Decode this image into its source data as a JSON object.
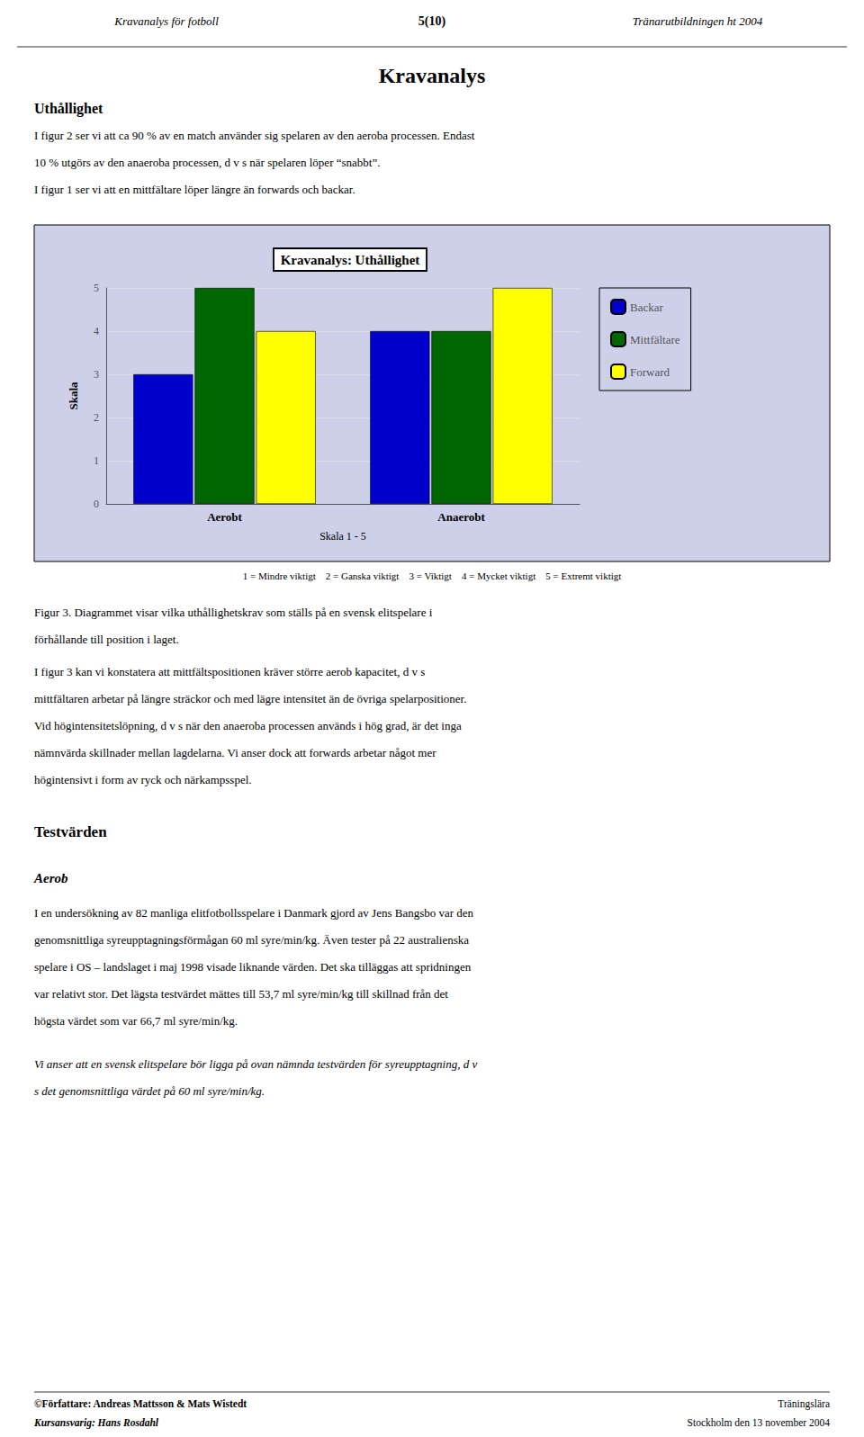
{
  "chart_data": {
    "type": "bar",
    "title": "Kravanalys: Uthållighet",
    "xlabel": "Skala 1 - 5",
    "ylabel": "Skala",
    "categories": [
      "Aerobt",
      "Anaerobt"
    ],
    "series": [
      {
        "name": "Backar",
        "color": "#0000CC",
        "values": [
          3,
          4
        ]
      },
      {
        "name": "Mittfältare",
        "color": "#006600",
        "values": [
          5,
          4
        ]
      },
      {
        "name": "Forward",
        "color": "#FFFF00",
        "values": [
          4,
          5
        ]
      }
    ],
    "ylim": [
      0,
      5
    ],
    "yticks": [
      0,
      1,
      2,
      3,
      4,
      5
    ],
    "grid": true,
    "legend": "right",
    "annotations": [
      "Kravanalys för fotboll",
      "5(10)",
      "Tränarutbildningen ht 2004",
      "Kravanalys",
      "Uthållighet",
      "I figur 2 ser vi att ca 90 % av en match använder sig spelaren av den aeroba processen. Endast",
      "10 % utgörs av den anaeroba processen, d v s när spelaren löper “snabbt”.",
      "I figur 1 ser vi att en mittfältare löper längre än forwards och backar.",
      "1 = Mindre viktigt    2 = Ganska viktigt    3 = Viktigt    4 = Mycket viktigt    5 = Extremt viktigt",
      "Figur 3. Diagrammet visar vilka uthållighetskrav som ställs på en svensk elitspelare i",
      "förhållande till position i laget.",
      "I figur 3 kan vi konstatera att mittfältspositionen kräver större aerob kapacitet, d v s",
      "mittfältaren arbetar på längre sträckor och med lägre intensitet än de övriga spelarpositioner.",
      "Vid högintensitetslöpning, d v s när den anaeroba processen används i hög grad, är det inga",
      "nämnvärda skillnader mellan lagdelarna. Vi anser dock att forwards arbetar något mer",
      "högintensivt i form av ryck och närkampsspel.",
      "Testvärden",
      "Aerob",
      "I en undersökning av 82 manliga elitfotbollsspelare i Danmark gjord av Jens Bangsbo var den",
      "genomsnittliga syreupptagningsförmågan 60 ml syre/min/kg. Även tester på 22 australienska",
      "spelare i OS – landslaget i maj 1998 visade liknande värden. Det ska tilläggas att spridningen",
      "var relativt stor. Det lägsta testvärdet mättes till 53,7 ml syre/min/kg till skillnad från det",
      "högsta värdet som var 66,7 ml syre/min/kg.",
      "Vi anser att en svensk elitspelare bör ligga på ovan nämnda testvärden för syreupptagning, d v",
      "s det genomsnittliga värdet på 60 ml syre/min/kg.",
      "©Författare: Andreas Mattsson & Mats Wistedt",
      "Kursansvarig: Hans Rosdahl",
      "Träningslära",
      "Stockholm den 13 november 2004"
    ]
  }
}
